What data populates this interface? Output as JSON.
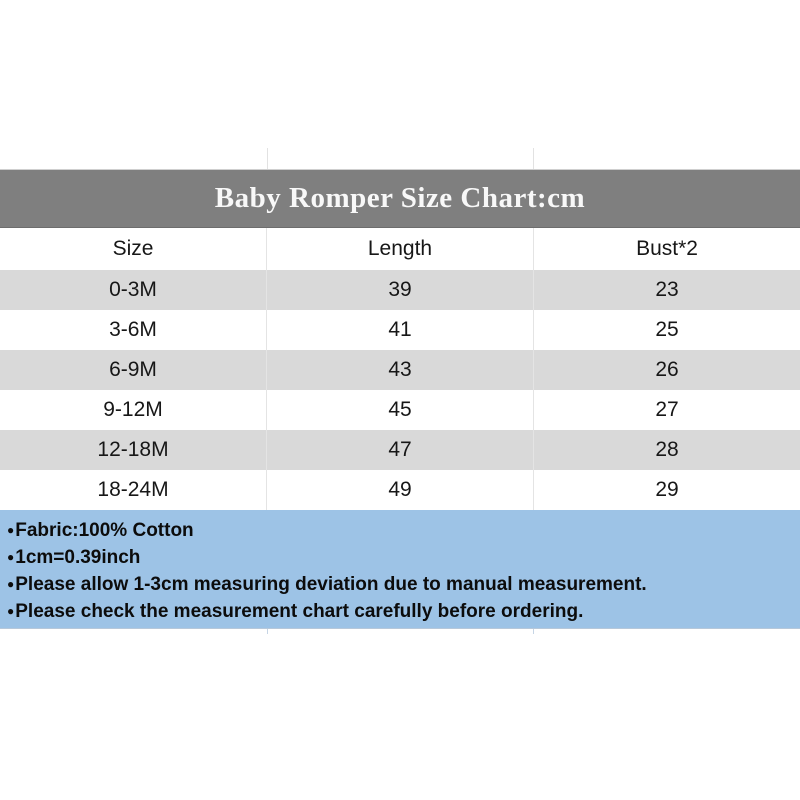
{
  "chart_data": {
    "type": "table",
    "title": "Baby Romper Size Chart:cm",
    "columns": [
      "Size",
      "Length",
      "Bust*2"
    ],
    "rows": [
      [
        "0-3M",
        "39",
        "23"
      ],
      [
        "3-6M",
        "41",
        "25"
      ],
      [
        "6-9M",
        "43",
        "26"
      ],
      [
        "9-12M",
        "45",
        "27"
      ],
      [
        "12-18M",
        "47",
        "28"
      ],
      [
        "18-24M",
        "49",
        "29"
      ]
    ],
    "bullet": "●",
    "notes": [
      "Fabric:100% Cotton",
      "1cm=0.39inch",
      "Please allow 1-3cm measuring deviation due to manual measurement.",
      "Please check the measurement chart carefully before ordering."
    ],
    "layout": {
      "legend_position": "none",
      "grid": "off",
      "row_alternating": true
    }
  },
  "colors": {
    "title_band_bg": "#7f7f7f",
    "title_text": "#f8f8f8",
    "row_alt_bg": "#d9d9d9",
    "row_bg": "#ffffff",
    "notes_bg": "#9dc3e6",
    "body_text": "#171717",
    "divider": "#e4e4e4"
  }
}
